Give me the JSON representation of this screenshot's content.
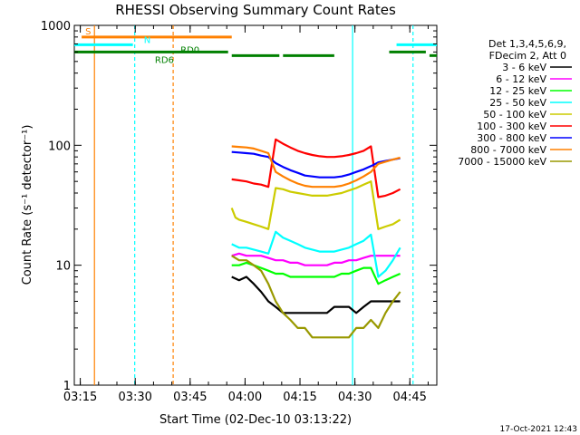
{
  "chart_data": {
    "type": "line",
    "title": "RHESSI Observing Summary Count Rates",
    "xlabel": "Start Time (02-Dec-10 03:13:22)",
    "ylabel": "Count Rate (s⁻¹ detector⁻¹)",
    "yscale": "log",
    "ylim": [
      1,
      1000
    ],
    "xlim_minutes": [
      0,
      99
    ],
    "x_ticks": [
      "03:15",
      "03:30",
      "03:45",
      "04:00",
      "04:15",
      "04:30",
      "04:45"
    ],
    "y_ticks": [
      "1",
      "10",
      "100",
      "1000"
    ],
    "legend": {
      "placement": "right",
      "header": [
        "Det 1,3,4,5,6,9,",
        "FDecim 2, Att 0"
      ]
    },
    "series": [
      {
        "name": "3 - 6 keV",
        "color": "#000000",
        "points": [
          [
            43,
            8
          ],
          [
            45,
            7.5
          ],
          [
            47,
            8
          ],
          [
            49,
            7
          ],
          [
            51,
            6
          ],
          [
            53,
            5
          ],
          [
            55,
            4.5
          ],
          [
            57,
            4
          ],
          [
            59,
            4
          ],
          [
            61,
            4
          ],
          [
            63,
            4
          ],
          [
            65,
            4
          ],
          [
            67,
            4
          ],
          [
            69,
            4
          ],
          [
            71,
            4.5
          ],
          [
            73,
            4.5
          ],
          [
            75,
            4.5
          ],
          [
            77,
            4
          ],
          [
            79,
            4.5
          ],
          [
            81,
            5
          ],
          [
            83,
            5
          ],
          [
            85,
            5
          ],
          [
            87,
            5
          ],
          [
            89,
            5
          ]
        ]
      },
      {
        "name": "6 - 12 keV",
        "color": "#ff00ff",
        "points": [
          [
            43,
            12
          ],
          [
            45,
            12.5
          ],
          [
            47,
            12
          ],
          [
            49,
            12
          ],
          [
            51,
            12
          ],
          [
            53,
            11.5
          ],
          [
            55,
            11
          ],
          [
            57,
            11
          ],
          [
            59,
            10.5
          ],
          [
            61,
            10.5
          ],
          [
            63,
            10
          ],
          [
            65,
            10
          ],
          [
            67,
            10
          ],
          [
            69,
            10
          ],
          [
            71,
            10.5
          ],
          [
            73,
            10.5
          ],
          [
            75,
            11
          ],
          [
            77,
            11
          ],
          [
            79,
            11.5
          ],
          [
            81,
            12
          ],
          [
            83,
            12
          ],
          [
            85,
            12
          ],
          [
            87,
            12
          ],
          [
            89,
            12
          ]
        ]
      },
      {
        "name": "12 - 25 keV",
        "color": "#00ff00",
        "points": [
          [
            43,
            10
          ],
          [
            45,
            10
          ],
          [
            47,
            10.5
          ],
          [
            49,
            10
          ],
          [
            51,
            9.5
          ],
          [
            53,
            9
          ],
          [
            55,
            8.5
          ],
          [
            57,
            8.5
          ],
          [
            59,
            8
          ],
          [
            61,
            8
          ],
          [
            63,
            8
          ],
          [
            65,
            8
          ],
          [
            67,
            8
          ],
          [
            69,
            8
          ],
          [
            71,
            8
          ],
          [
            73,
            8.5
          ],
          [
            75,
            8.5
          ],
          [
            77,
            9
          ],
          [
            79,
            9.5
          ],
          [
            81,
            9.5
          ],
          [
            83,
            7
          ],
          [
            85,
            7.5
          ],
          [
            87,
            8
          ],
          [
            89,
            8.5
          ]
        ]
      },
      {
        "name": "25 - 50 keV",
        "color": "#00ffff",
        "points": [
          [
            43,
            15
          ],
          [
            45,
            14
          ],
          [
            47,
            14
          ],
          [
            49,
            13.5
          ],
          [
            51,
            13
          ],
          [
            53,
            12.5
          ],
          [
            55,
            19
          ],
          [
            57,
            17
          ],
          [
            59,
            16
          ],
          [
            61,
            15
          ],
          [
            63,
            14
          ],
          [
            65,
            13.5
          ],
          [
            67,
            13
          ],
          [
            69,
            13
          ],
          [
            71,
            13
          ],
          [
            73,
            13.5
          ],
          [
            75,
            14
          ],
          [
            77,
            15
          ],
          [
            79,
            16
          ],
          [
            81,
            18
          ],
          [
            83,
            8
          ],
          [
            85,
            9
          ],
          [
            87,
            11
          ],
          [
            89,
            14
          ]
        ]
      },
      {
        "name": "50 - 100 keV",
        "color": "#cccc00",
        "points": [
          [
            43,
            30
          ],
          [
            44,
            25
          ],
          [
            45,
            24
          ],
          [
            47,
            23
          ],
          [
            49,
            22
          ],
          [
            51,
            21
          ],
          [
            53,
            20
          ],
          [
            55,
            44
          ],
          [
            57,
            43
          ],
          [
            59,
            41
          ],
          [
            61,
            40
          ],
          [
            63,
            39
          ],
          [
            65,
            38
          ],
          [
            67,
            38
          ],
          [
            69,
            38
          ],
          [
            71,
            39
          ],
          [
            73,
            40
          ],
          [
            75,
            42
          ],
          [
            77,
            44
          ],
          [
            79,
            47
          ],
          [
            81,
            50
          ],
          [
            83,
            20
          ],
          [
            85,
            21
          ],
          [
            87,
            22
          ],
          [
            89,
            24
          ]
        ]
      },
      {
        "name": "100 - 300 keV",
        "color": "#ff0000",
        "points": [
          [
            43,
            52
          ],
          [
            45,
            51
          ],
          [
            47,
            50
          ],
          [
            49,
            48
          ],
          [
            51,
            47
          ],
          [
            53,
            45
          ],
          [
            55,
            112
          ],
          [
            57,
            103
          ],
          [
            59,
            96
          ],
          [
            61,
            90
          ],
          [
            63,
            86
          ],
          [
            65,
            83
          ],
          [
            67,
            81
          ],
          [
            69,
            80
          ],
          [
            71,
            80
          ],
          [
            73,
            81
          ],
          [
            75,
            83
          ],
          [
            77,
            86
          ],
          [
            79,
            90
          ],
          [
            81,
            98
          ],
          [
            83,
            37
          ],
          [
            85,
            38
          ],
          [
            87,
            40
          ],
          [
            89,
            43
          ]
        ]
      },
      {
        "name": "300 - 800 keV",
        "color": "#0000ff",
        "points": [
          [
            43,
            88
          ],
          [
            45,
            87
          ],
          [
            47,
            86
          ],
          [
            49,
            85
          ],
          [
            51,
            82
          ],
          [
            53,
            80
          ],
          [
            55,
            71
          ],
          [
            57,
            66
          ],
          [
            59,
            62
          ],
          [
            61,
            59
          ],
          [
            63,
            56
          ],
          [
            65,
            55
          ],
          [
            67,
            54
          ],
          [
            69,
            54
          ],
          [
            71,
            54
          ],
          [
            73,
            55
          ],
          [
            75,
            57
          ],
          [
            77,
            60
          ],
          [
            79,
            63
          ],
          [
            81,
            67
          ],
          [
            83,
            72
          ],
          [
            85,
            74
          ],
          [
            87,
            76
          ],
          [
            89,
            78
          ]
        ]
      },
      {
        "name": "800 - 7000 keV",
        "color": "#ff8000",
        "points": [
          [
            43,
            98
          ],
          [
            45,
            97
          ],
          [
            47,
            96
          ],
          [
            49,
            94
          ],
          [
            51,
            90
          ],
          [
            53,
            86
          ],
          [
            55,
            60
          ],
          [
            57,
            55
          ],
          [
            59,
            51
          ],
          [
            61,
            48
          ],
          [
            63,
            46
          ],
          [
            65,
            45
          ],
          [
            67,
            45
          ],
          [
            69,
            45
          ],
          [
            71,
            45
          ],
          [
            73,
            46
          ],
          [
            75,
            48
          ],
          [
            77,
            51
          ],
          [
            79,
            55
          ],
          [
            81,
            60
          ],
          [
            83,
            70
          ],
          [
            85,
            73
          ],
          [
            87,
            76
          ],
          [
            89,
            79
          ]
        ]
      },
      {
        "name": "7000 - 15000 keV",
        "color": "#999900",
        "points": [
          [
            43,
            12
          ],
          [
            45,
            11
          ],
          [
            47,
            11
          ],
          [
            49,
            10
          ],
          [
            51,
            9
          ],
          [
            53,
            7
          ],
          [
            55,
            5
          ],
          [
            57,
            4
          ],
          [
            59,
            3.5
          ],
          [
            61,
            3
          ],
          [
            63,
            3
          ],
          [
            65,
            2.5
          ],
          [
            67,
            2.5
          ],
          [
            69,
            2.5
          ],
          [
            71,
            2.5
          ],
          [
            73,
            2.5
          ],
          [
            75,
            2.5
          ],
          [
            77,
            3
          ],
          [
            79,
            3
          ],
          [
            81,
            3.5
          ],
          [
            83,
            3
          ],
          [
            85,
            4
          ],
          [
            87,
            5
          ],
          [
            89,
            6
          ]
        ]
      }
    ],
    "state_bars": [
      {
        "label": "S",
        "color": "#ff8000",
        "level": 800,
        "segments": [
          [
            2,
            43
          ]
        ]
      },
      {
        "label": "N",
        "color": "#00ffff",
        "level": 690,
        "segments": [
          [
            0,
            16
          ],
          [
            88,
            99
          ]
        ]
      },
      {
        "label": "RD6",
        "color": "#008000",
        "level": 600,
        "segments": [
          [
            0,
            42
          ],
          [
            86,
            96
          ]
        ]
      },
      {
        "label": "RD0",
        "color": "#008000",
        "level": 560,
        "segments": [
          [
            43,
            56
          ],
          [
            57,
            71
          ],
          [
            97,
            99
          ]
        ]
      }
    ],
    "vertical_markers": [
      {
        "minute": 5.5,
        "color": "#ff8000",
        "style": "solid"
      },
      {
        "minute": 16.5,
        "color": "#00ffff",
        "style": "dashed"
      },
      {
        "minute": 27,
        "color": "#ff8000",
        "style": "dashed"
      },
      {
        "minute": 76,
        "color": "#00ffff",
        "style": "solid"
      },
      {
        "minute": 92.5,
        "color": "#00ffff",
        "style": "dashed"
      }
    ],
    "footer_timestamp": "17-Oct-2021 12:43"
  }
}
